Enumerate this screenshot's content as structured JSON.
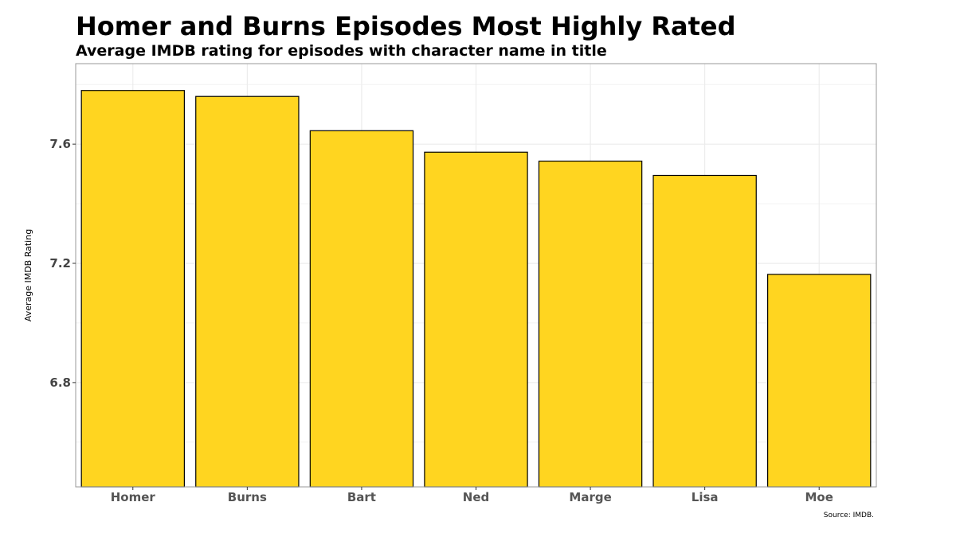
{
  "chart_data": {
    "type": "bar",
    "title": "Homer and Burns Episodes Most Highly Rated",
    "subtitle": "Average IMDB rating for episodes with character name in title",
    "xlabel": "",
    "ylabel": "Average IMDB Rating",
    "caption": "Source: IMDB.",
    "categories": [
      "Homer",
      "Burns",
      "Bart",
      "Ned",
      "Marge",
      "Lisa",
      "Moe"
    ],
    "values": [
      7.78,
      7.76,
      7.645,
      7.573,
      7.543,
      7.495,
      7.163
    ],
    "ylim": [
      6.45,
      7.87
    ],
    "yticks": [
      6.8,
      7.2,
      7.6
    ],
    "ytick_labels": [
      "6.8",
      "7.2",
      "7.6"
    ],
    "grid": true,
    "colors": {
      "bar_fill": "#FFD520",
      "bar_stroke": "#000000",
      "grid": "#EBEBEB",
      "panel_border": "#999999"
    }
  }
}
